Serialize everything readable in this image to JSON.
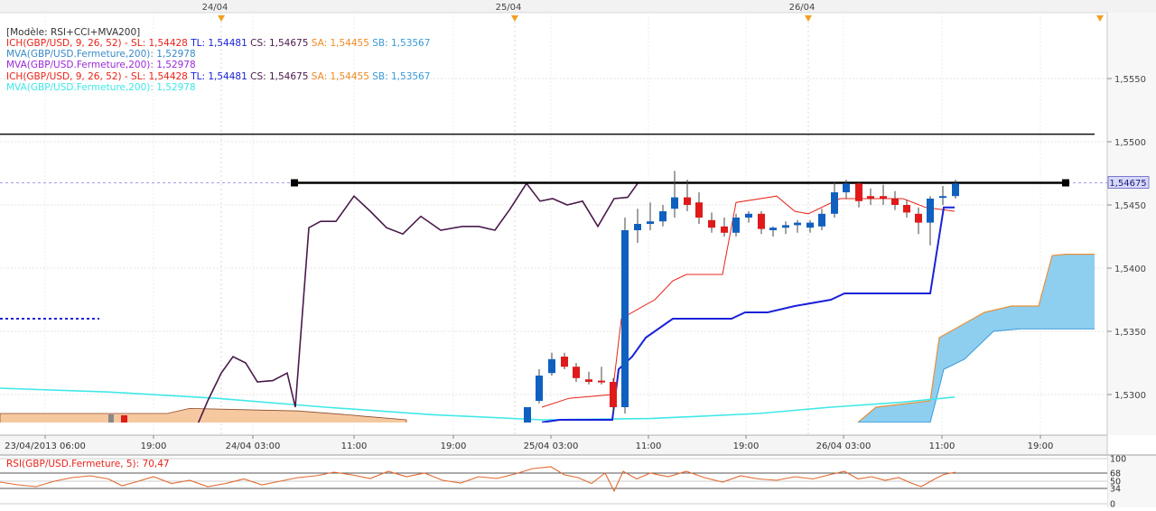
{
  "chart_data": [
    {
      "type": "candlestick",
      "instrument": "GBP/USD",
      "model_label": "[Modèle: RSI+CCI+MVA200]",
      "legend": [
        {
          "text": "ICH(GBP/USD, 9, 26, 52) -  SL: 1,54428",
          "color": "#e8231a"
        },
        {
          "text": "TL: 1,54481",
          "color": "#1a22d8"
        },
        {
          "text": "CS: 1,54675",
          "color": "#4a1a4a"
        },
        {
          "text": "SA: 1,54455",
          "color": "#f08a24"
        },
        {
          "text": "SB: 1,53567",
          "color": "#3a9ad8"
        },
        {
          "text": "MVA(GBP/USD.Fermeture,200): 1,52978",
          "color": "#3a8ac8"
        },
        {
          "text": "MVA(GBP/USD.Fermeture,200): 1,52978",
          "color": "#9a2ad8"
        },
        {
          "text": "ICH(GBP/USD, 9, 26, 52) -  SL: 1,54428",
          "color": "#e8231a"
        },
        {
          "text": "TL: 1,54481",
          "color": "#1a22d8"
        },
        {
          "text": "CS: 1,54675",
          "color": "#4a1a4a"
        },
        {
          "text": "SA: 1,54455",
          "color": "#f08a24"
        },
        {
          "text": "SB: 1,53567",
          "color": "#3a9ad8"
        },
        {
          "text": "MVA(GBP/USD.Fermeture,200): 1,52978",
          "color": "#40e8e8"
        }
      ],
      "date_markers": [
        "24/04",
        "25/04",
        "26/04"
      ],
      "x_tick_labels": [
        "23/04/2013 06:00",
        "19:00",
        "24/04 03:00",
        "11:00",
        "19:00",
        "25/04 03:00",
        "11:00",
        "19:00",
        "26/04 03:00",
        "11:00",
        "19:00"
      ],
      "y_tick_labels": [
        "1,5550",
        "1,5500",
        "1,5450",
        "1,5400",
        "1,5350",
        "1,5300"
      ],
      "current_price_label": "1,54675",
      "current_price": 1.54675,
      "ylim": [
        1.5273,
        1.5575
      ],
      "candles": [
        {
          "x": 584,
          "o": 1.5275,
          "h": 1.529,
          "l": 1.5272,
          "c": 1.529,
          "up": true
        },
        {
          "x": 597,
          "o": 1.5295,
          "h": 1.532,
          "l": 1.5293,
          "c": 1.5315,
          "up": true
        },
        {
          "x": 611,
          "o": 1.5317,
          "h": 1.5333,
          "l": 1.5315,
          "c": 1.5328,
          "up": true
        },
        {
          "x": 625,
          "o": 1.533,
          "h": 1.5333,
          "l": 1.532,
          "c": 1.5322,
          "up": false
        },
        {
          "x": 638,
          "o": 1.5322,
          "h": 1.5325,
          "l": 1.531,
          "c": 1.5313,
          "up": false
        },
        {
          "x": 652,
          "o": 1.531,
          "h": 1.5318,
          "l": 1.5308,
          "c": 1.5312,
          "up": false
        },
        {
          "x": 666,
          "o": 1.5311,
          "h": 1.5322,
          "l": 1.5308,
          "c": 1.531,
          "up": false
        },
        {
          "x": 679,
          "o": 1.531,
          "h": 1.5313,
          "l": 1.5285,
          "c": 1.529,
          "up": false
        },
        {
          "x": 692,
          "o": 1.529,
          "h": 1.544,
          "l": 1.5285,
          "c": 1.543,
          "up": true
        },
        {
          "x": 706,
          "o": 1.543,
          "h": 1.5447,
          "l": 1.542,
          "c": 1.5435,
          "up": true
        },
        {
          "x": 720,
          "o": 1.5435,
          "h": 1.5452,
          "l": 1.543,
          "c": 1.5437,
          "up": true
        },
        {
          "x": 734,
          "o": 1.5437,
          "h": 1.545,
          "l": 1.5433,
          "c": 1.5445,
          "up": true
        },
        {
          "x": 747,
          "o": 1.5447,
          "h": 1.5477,
          "l": 1.544,
          "c": 1.5456,
          "up": true
        },
        {
          "x": 761,
          "o": 1.5456,
          "h": 1.547,
          "l": 1.5445,
          "c": 1.545,
          "up": false
        },
        {
          "x": 774,
          "o": 1.5452,
          "h": 1.546,
          "l": 1.5435,
          "c": 1.544,
          "up": false
        },
        {
          "x": 788,
          "o": 1.5438,
          "h": 1.5444,
          "l": 1.5428,
          "c": 1.5432,
          "up": false
        },
        {
          "x": 802,
          "o": 1.5433,
          "h": 1.544,
          "l": 1.5425,
          "c": 1.5428,
          "up": false
        },
        {
          "x": 815,
          "o": 1.5428,
          "h": 1.5443,
          "l": 1.5425,
          "c": 1.544,
          "up": true
        },
        {
          "x": 829,
          "o": 1.544,
          "h": 1.5445,
          "l": 1.5436,
          "c": 1.5443,
          "up": true
        },
        {
          "x": 843,
          "o": 1.5443,
          "h": 1.5445,
          "l": 1.5427,
          "c": 1.5431,
          "up": false
        },
        {
          "x": 856,
          "o": 1.543,
          "h": 1.5433,
          "l": 1.5425,
          "c": 1.5432,
          "up": true
        },
        {
          "x": 870,
          "o": 1.5432,
          "h": 1.5437,
          "l": 1.5427,
          "c": 1.5434,
          "up": true
        },
        {
          "x": 883,
          "o": 1.5434,
          "h": 1.5438,
          "l": 1.5428,
          "c": 1.5436,
          "up": true
        },
        {
          "x": 897,
          "o": 1.5436,
          "h": 1.5438,
          "l": 1.5428,
          "c": 1.5432,
          "up": true
        },
        {
          "x": 910,
          "o": 1.5433,
          "h": 1.5447,
          "l": 1.543,
          "c": 1.5443,
          "up": true
        },
        {
          "x": 924,
          "o": 1.5443,
          "h": 1.5468,
          "l": 1.544,
          "c": 1.546,
          "up": true
        },
        {
          "x": 937,
          "o": 1.546,
          "h": 1.547,
          "l": 1.5455,
          "c": 1.5467,
          "up": true
        },
        {
          "x": 951,
          "o": 1.5467,
          "h": 1.5468,
          "l": 1.5448,
          "c": 1.5453,
          "up": false
        },
        {
          "x": 964,
          "o": 1.5455,
          "h": 1.5463,
          "l": 1.545,
          "c": 1.5457,
          "up": false
        },
        {
          "x": 978,
          "o": 1.5457,
          "h": 1.5466,
          "l": 1.545,
          "c": 1.5455,
          "up": false
        },
        {
          "x": 991,
          "o": 1.5455,
          "h": 1.5461,
          "l": 1.5446,
          "c": 1.545,
          "up": false
        },
        {
          "x": 1004,
          "o": 1.545,
          "h": 1.5454,
          "l": 1.544,
          "c": 1.5444,
          "up": false
        },
        {
          "x": 1017,
          "o": 1.5443,
          "h": 1.5448,
          "l": 1.5427,
          "c": 1.5436,
          "up": false
        },
        {
          "x": 1030,
          "o": 1.5436,
          "h": 1.5457,
          "l": 1.5418,
          "c": 1.5455,
          "up": true
        },
        {
          "x": 1044,
          "o": 1.5456,
          "h": 1.5465,
          "l": 1.545,
          "c": 1.5457,
          "up": true
        },
        {
          "x": 1058,
          "o": 1.5457,
          "h": 1.547,
          "l": 1.5455,
          "c": 1.5467,
          "up": true
        }
      ],
      "tenkan": [
        [
          600,
          1.5278
        ],
        [
          620,
          1.528
        ],
        [
          678,
          1.528
        ],
        [
          685,
          1.532
        ],
        [
          700,
          1.533
        ],
        [
          715,
          1.5345
        ],
        [
          745,
          1.536
        ],
        [
          810,
          1.536
        ],
        [
          825,
          1.5365
        ],
        [
          850,
          1.5365
        ],
        [
          880,
          1.537
        ],
        [
          920,
          1.5375
        ],
        [
          935,
          1.538
        ],
        [
          1030,
          1.538
        ],
        [
          1045,
          1.5448
        ],
        [
          1057,
          1.5448
        ]
      ],
      "kijun": [
        [
          600,
          1.529
        ],
        [
          630,
          1.5297
        ],
        [
          678,
          1.53
        ],
        [
          688,
          1.536
        ],
        [
          705,
          1.5367
        ],
        [
          725,
          1.5375
        ],
        [
          745,
          1.539
        ],
        [
          760,
          1.5395
        ],
        [
          800,
          1.5395
        ],
        [
          815,
          1.5452
        ],
        [
          860,
          1.5457
        ],
        [
          880,
          1.5445
        ],
        [
          895,
          1.5443
        ],
        [
          930,
          1.5455
        ],
        [
          1000,
          1.5455
        ],
        [
          1025,
          1.5448
        ],
        [
          1057,
          1.5445
        ]
      ],
      "chikou": [
        [
          215,
          1.527
        ],
        [
          230,
          1.5295
        ],
        [
          245,
          1.5317
        ],
        [
          258,
          1.533
        ],
        [
          272,
          1.5325
        ],
        [
          285,
          1.531
        ],
        [
          302,
          1.5311
        ],
        [
          318,
          1.5317
        ],
        [
          327,
          1.529
        ],
        [
          342,
          1.5432
        ],
        [
          355,
          1.5437
        ],
        [
          372,
          1.5437
        ],
        [
          392,
          1.5457
        ],
        [
          410,
          1.5445
        ],
        [
          428,
          1.5432
        ],
        [
          446,
          1.5427
        ],
        [
          466,
          1.5441
        ],
        [
          488,
          1.543
        ],
        [
          512,
          1.5433
        ],
        [
          530,
          1.5433
        ],
        [
          548,
          1.543
        ],
        [
          565,
          1.5447
        ],
        [
          583,
          1.5467
        ],
        [
          598,
          1.5453
        ],
        [
          612,
          1.5455
        ],
        [
          628,
          1.545
        ],
        [
          645,
          1.5453
        ],
        [
          662,
          1.5433
        ],
        [
          680,
          1.5455
        ],
        [
          695,
          1.5456
        ],
        [
          706,
          1.5467
        ]
      ],
      "senkou_a": [
        [
          950,
          1.5278
        ],
        [
          970,
          1.529
        ],
        [
          1030,
          1.5295
        ],
        [
          1040,
          1.5345
        ],
        [
          1065,
          1.5355
        ],
        [
          1090,
          1.5365
        ],
        [
          1120,
          1.537
        ],
        [
          1150,
          1.537
        ],
        [
          1165,
          1.541
        ],
        [
          1180,
          1.5411
        ],
        [
          1212,
          1.5411
        ]
      ],
      "senkou_b": [
        [
          950,
          1.5278
        ],
        [
          1030,
          1.5278
        ],
        [
          1038,
          1.53
        ],
        [
          1045,
          1.532
        ],
        [
          1068,
          1.5328
        ],
        [
          1100,
          1.535
        ],
        [
          1130,
          1.5352
        ],
        [
          1212,
          1.5352
        ]
      ],
      "mva200_cyan": [
        [
          0,
          1.5305
        ],
        [
          120,
          1.5302
        ],
        [
          240,
          1.5297
        ],
        [
          360,
          1.529
        ],
        [
          480,
          1.5284
        ],
        [
          600,
          1.528
        ],
        [
          720,
          1.5281
        ],
        [
          840,
          1.5285
        ],
        [
          920,
          1.529
        ],
        [
          1000,
          1.5294
        ],
        [
          1057,
          1.5298
        ]
      ],
      "tan_band": [
        [
          0,
          1.5285
        ],
        [
          185,
          1.5285
        ],
        [
          210,
          1.5289
        ],
        [
          330,
          1.5287
        ],
        [
          385,
          1.5284
        ],
        [
          400,
          1.5283
        ],
        [
          450,
          1.528
        ]
      ],
      "resistance_line": {
        "x1": 326,
        "x2": 1180,
        "y": 1.54675
      },
      "upper_line": {
        "y": 1.5506
      },
      "blue_dotted_level": {
        "x1": 0,
        "x2": 110,
        "y": 1.536
      },
      "rsi": {
        "label": "RSI(GBP/USD.Fermeture, 5): 70,47",
        "ylim": [
          0,
          100
        ],
        "axis_labels": [
          "100",
          "68",
          "50",
          "34",
          "0"
        ],
        "series": [
          [
            0,
            48
          ],
          [
            20,
            42
          ],
          [
            40,
            38
          ],
          [
            60,
            50
          ],
          [
            80,
            58
          ],
          [
            100,
            62
          ],
          [
            120,
            55
          ],
          [
            135,
            40
          ],
          [
            150,
            48
          ],
          [
            170,
            60
          ],
          [
            190,
            45
          ],
          [
            210,
            52
          ],
          [
            230,
            38
          ],
          [
            250,
            45
          ],
          [
            270,
            55
          ],
          [
            290,
            42
          ],
          [
            310,
            50
          ],
          [
            330,
            58
          ],
          [
            350,
            62
          ],
          [
            370,
            70
          ],
          [
            390,
            64
          ],
          [
            410,
            56
          ],
          [
            430,
            72
          ],
          [
            450,
            60
          ],
          [
            470,
            68
          ],
          [
            490,
            52
          ],
          [
            510,
            46
          ],
          [
            530,
            60
          ],
          [
            550,
            56
          ],
          [
            570,
            66
          ],
          [
            590,
            78
          ],
          [
            610,
            82
          ],
          [
            625,
            64
          ],
          [
            640,
            58
          ],
          [
            655,
            45
          ],
          [
            670,
            68
          ],
          [
            680,
            28
          ],
          [
            690,
            72
          ],
          [
            705,
            55
          ],
          [
            720,
            68
          ],
          [
            740,
            60
          ],
          [
            760,
            72
          ],
          [
            780,
            58
          ],
          [
            800,
            48
          ],
          [
            820,
            62
          ],
          [
            840,
            55
          ],
          [
            860,
            52
          ],
          [
            880,
            60
          ],
          [
            900,
            55
          ],
          [
            920,
            65
          ],
          [
            935,
            72
          ],
          [
            950,
            55
          ],
          [
            965,
            60
          ],
          [
            980,
            52
          ],
          [
            995,
            58
          ],
          [
            1010,
            45
          ],
          [
            1020,
            38
          ],
          [
            1035,
            55
          ],
          [
            1045,
            65
          ],
          [
            1058,
            70
          ]
        ]
      }
    }
  ]
}
